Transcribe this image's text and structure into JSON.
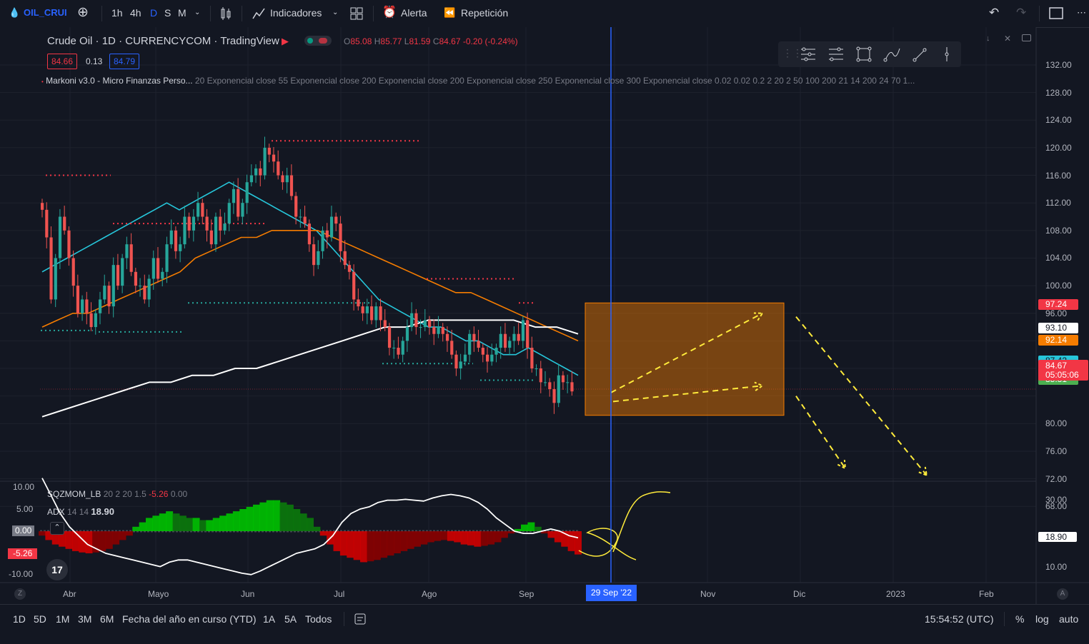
{
  "toolbar": {
    "symbol": "OIL_CRUI",
    "intervals": [
      "1h",
      "4h",
      "D",
      "S",
      "M"
    ],
    "indicators_label": "Indicadores",
    "alert_label": "Alerta",
    "replay_label": "Repetición"
  },
  "legend": {
    "name": "Crude Oil",
    "interval": "1D",
    "exchange": "CURRENCYCOM",
    "source": "TradingView",
    "ohlc": {
      "o_label": "O",
      "o": "85.08",
      "h_label": "H",
      "h": "85.77",
      "l_label": "L",
      "l": "81.59",
      "c_label": "C",
      "c": "84.67",
      "change": "-0.20 (-0.24%)"
    },
    "bid": "84.66",
    "spread": "0.13",
    "ask": "84.79",
    "indicator_name": "Markoni v3.0 - Micro Finanzas Perso...",
    "indicator_params": "20 Exponencial close 55 Exponencial close 200 Exponencial close 200 Exponencial close 250 Exponencial close 300 Exponencial close 0.02 0.02 0.2 2 20 2 50 100 200 21 14 200 24 70 1..."
  },
  "osc_legend": {
    "sqz_name": "SQZMOM_LB",
    "sqz_params": "20 2 20 1.5",
    "sqz_val1": "-5.26",
    "sqz_val2": "0.00",
    "adx_name": "ADX",
    "adx_params": "14 14",
    "adx_val": "18.90"
  },
  "price_axis": {
    "ticks": [
      "132.00",
      "128.00",
      "124.00",
      "120.00",
      "116.00",
      "112.00",
      "108.00",
      "104.00",
      "100.00",
      "96.00",
      "80.00",
      "76.00",
      "72.00",
      "68.00"
    ],
    "tags": [
      {
        "label": "97.24",
        "bg": "#f23645",
        "fg": "#ffffff"
      },
      {
        "label": "93.10",
        "bg": "#ffffff",
        "fg": "#131722"
      },
      {
        "label": "92.14",
        "bg": "#f57c00",
        "fg": "#ffffff"
      },
      {
        "label": "87.42",
        "bg": "#26c6da",
        "fg": "#131722"
      },
      {
        "label": "85.31",
        "bg": "#4caf50",
        "fg": "#ffffff"
      }
    ],
    "last_price": "84.67",
    "countdown": "05:05:06"
  },
  "osc_axis": {
    "left_ticks": [
      "10.00",
      "5.00",
      "0.00",
      "-10.00"
    ],
    "left_current": "-5.26",
    "right_ticks": [
      "30.00",
      "10.00"
    ],
    "right_current": "18.90"
  },
  "time_axis": {
    "labels": [
      "Abr",
      "Mayo",
      "Jun",
      "Jul",
      "Ago",
      "Sep",
      "Nov",
      "Dic",
      "2023",
      "Feb"
    ],
    "crosshair_label": "29 Sep '22"
  },
  "range_bar": {
    "ranges": [
      "1D",
      "5D",
      "1M",
      "3M",
      "6M",
      "Fecha del año en curso (YTD)",
      "1A",
      "5A",
      "Todos"
    ],
    "clock": "15:54:52 (UTC)",
    "pct": "%",
    "log": "log",
    "auto": "auto"
  },
  "colors": {
    "up": "#26a69a",
    "down": "#ef5350",
    "ema20": "#26c6da",
    "ema55": "#f57c00",
    "ema200": "#ffffff",
    "crosshair": "#2962ff",
    "projection_box": "#f57c00",
    "projection_arrows": "#ffeb3b"
  },
  "chart_data": {
    "type": "candlestick",
    "symbol": "Crude Oil",
    "timeframe": "1D",
    "y_range": [
      66,
      134
    ],
    "x_start": "2022-03-10",
    "last": {
      "date": "2022-09-19",
      "open": 85.08,
      "high": 85.77,
      "low": 81.59,
      "close": 84.67
    },
    "closes": [
      111,
      107,
      98,
      104,
      110,
      108,
      104,
      100,
      96,
      98,
      96,
      94,
      96,
      98,
      100,
      97,
      103,
      100,
      104,
      106,
      102,
      100,
      100,
      98,
      101,
      104,
      101,
      102,
      106,
      108,
      105,
      106,
      110,
      108,
      110,
      112,
      110,
      108,
      106,
      110,
      108,
      109,
      112,
      114,
      110,
      112,
      115,
      116,
      117,
      116,
      120,
      119,
      118,
      116,
      115,
      116,
      113,
      110,
      110,
      109,
      106,
      103,
      105,
      108,
      107,
      110,
      109,
      105,
      103,
      102,
      98,
      97,
      96,
      97,
      95,
      97,
      95,
      94,
      91,
      91,
      90,
      92,
      94,
      96,
      94,
      94,
      95,
      94,
      93,
      94,
      93,
      92,
      90,
      88,
      89,
      90,
      93,
      92,
      91,
      90,
      89,
      90,
      91,
      93,
      91,
      92,
      93,
      92,
      95,
      91,
      88,
      88,
      86,
      86,
      85,
      83,
      87,
      86,
      86,
      84.67
    ],
    "series": [
      {
        "name": "EMA 20",
        "values": [
          102,
          103,
          104,
          105,
          106,
          107,
          108,
          109,
          110,
          111,
          112,
          111,
          112,
          113,
          114,
          115,
          114,
          113,
          112,
          111,
          110,
          109,
          108,
          106,
          104,
          102,
          100,
          98,
          97,
          96,
          95,
          94,
          94,
          93,
          92,
          92,
          91,
          90,
          90,
          91,
          90,
          89,
          88,
          87
        ]
      },
      {
        "name": "EMA 55",
        "values": [
          94,
          95,
          96,
          96,
          97,
          98,
          99,
          100,
          101,
          102,
          104,
          105,
          106,
          107,
          107,
          108,
          108,
          108,
          108,
          107,
          106,
          105,
          104,
          103,
          102,
          101,
          100,
          99,
          99,
          98,
          97,
          96,
          95,
          94,
          93,
          92
        ]
      },
      {
        "name": "EMA 200",
        "values": [
          81,
          82,
          83,
          84,
          85,
          86,
          86,
          87,
          87,
          88,
          88,
          89,
          90,
          91,
          92,
          93,
          94,
          94,
          95,
          95,
          95,
          95,
          95,
          94,
          94,
          93
        ]
      }
    ],
    "support_resistance": [
      116,
      109,
      97.5,
      93.5,
      93.3,
      121,
      101,
      88.7,
      86.3,
      85,
      97.5
    ],
    "projection": {
      "box_top": 97.5,
      "box_bottom": 81.2,
      "targets": [
        96,
        85.5,
        73.5,
        72.5
      ]
    },
    "oscillator": {
      "name": "SQZMOM_LB",
      "range": [
        -12,
        12
      ],
      "values": [
        -1,
        -2,
        -3,
        -3.5,
        -4,
        -4.5,
        -4.8,
        -5,
        -4.8,
        -4.5,
        -4,
        -3,
        -2,
        -1,
        1,
        2,
        3,
        3.5,
        4,
        4.5,
        4,
        3.5,
        3,
        3,
        2.5,
        2.5,
        3,
        3.5,
        4,
        4.5,
        5,
        5.5,
        6,
        6.5,
        7,
        7,
        6.5,
        6,
        5,
        4,
        3,
        1,
        -1,
        -3,
        -4.5,
        -5.5,
        -6,
        -6.5,
        -7,
        -6.8,
        -6.5,
        -6,
        -5.5,
        -5,
        -4.5,
        -4,
        -3.5,
        -3,
        -2.5,
        -2.2,
        -2,
        -2.2,
        -2.5,
        -3,
        -3.2,
        -3.5,
        -3.3,
        -3,
        -2.5,
        -1.5,
        -0.5,
        0.5,
        1.5,
        2,
        1,
        -0.5,
        -1.5,
        -2.5,
        -3.5,
        -4.5,
        -5.26
      ]
    },
    "adx": {
      "name": "ADX",
      "range": [
        0,
        40
      ],
      "current": 18.9
    }
  }
}
